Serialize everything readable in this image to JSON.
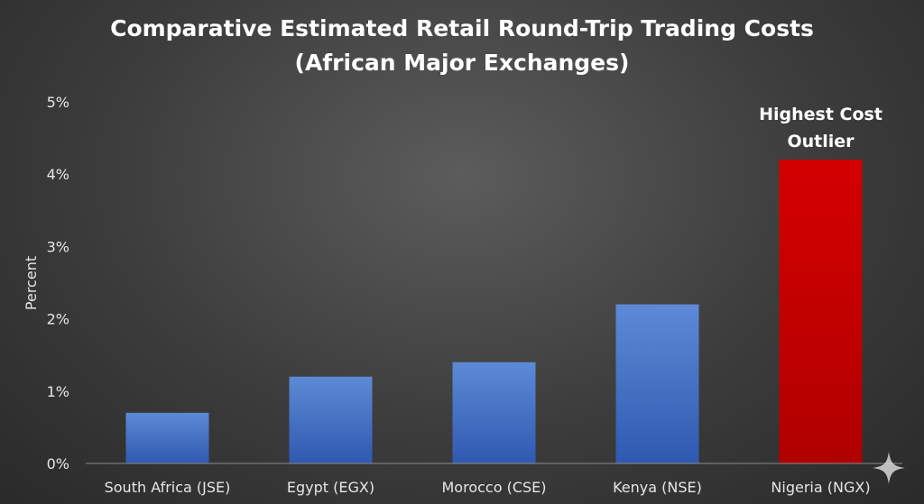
{
  "chart_data": {
    "type": "bar",
    "title": "Comparative Estimated Retail Round-Trip Trading Costs",
    "subtitle": "(African Major Exchanges)",
    "xlabel": "",
    "ylabel": "Percent",
    "ylim": [
      0,
      5
    ],
    "yticks": [
      "0%",
      "1%",
      "2%",
      "3%",
      "4%",
      "5%"
    ],
    "grid": false,
    "categories": [
      "South Africa (JSE)",
      "Egypt (EGX)",
      "Morocco (CSE)",
      "Kenya (NSE)",
      "Nigeria (NGX)"
    ],
    "values": [
      0.7,
      1.2,
      1.4,
      2.2,
      4.2
    ],
    "highlight_index": 4,
    "colors": {
      "bar": "#4472c4",
      "highlight": "#c00000"
    },
    "annotation": {
      "lines": [
        "Highest Cost",
        "Outlier"
      ]
    }
  }
}
